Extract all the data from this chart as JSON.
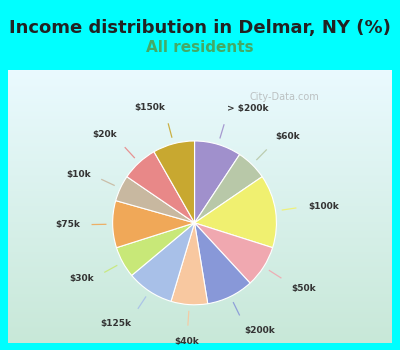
{
  "title": "Income distribution in Delmar, NY (%)",
  "subtitle": "All residents",
  "bg_color": "#00FFFF",
  "inner_bg_top": "#f0faf8",
  "inner_bg_bottom": "#d8f0e8",
  "title_fontsize": 13,
  "subtitle_fontsize": 11,
  "watermark": "City-Data.com",
  "slices": [
    {
      "label": "> $200k",
      "value": 9,
      "color": "#a090cc"
    },
    {
      "label": "$60k",
      "value": 6,
      "color": "#b8c8a8"
    },
    {
      "label": "$100k",
      "value": 14,
      "color": "#f0f070"
    },
    {
      "label": "$50k",
      "value": 8,
      "color": "#f0a8b0"
    },
    {
      "label": "$200k",
      "value": 9,
      "color": "#8898d8"
    },
    {
      "label": "$40k",
      "value": 7,
      "color": "#f8c8a0"
    },
    {
      "label": "$125k",
      "value": 9,
      "color": "#a8c0e8"
    },
    {
      "label": "$30k",
      "value": 6,
      "color": "#c8e878"
    },
    {
      "label": "$75k",
      "value": 9,
      "color": "#f0a858"
    },
    {
      "label": "$10k",
      "value": 5,
      "color": "#c8b8a0"
    },
    {
      "label": "$20k",
      "value": 7,
      "color": "#e88888"
    },
    {
      "label": "$150k",
      "value": 8,
      "color": "#c8a830"
    }
  ]
}
